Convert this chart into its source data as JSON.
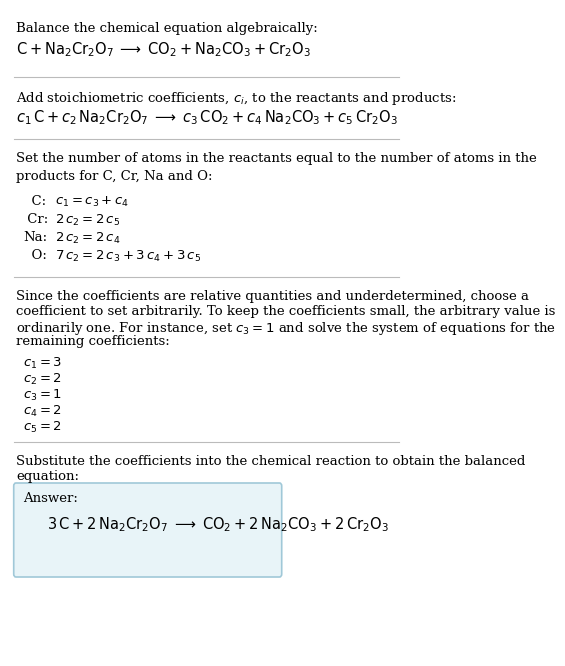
{
  "bg_color": "#ffffff",
  "line_color": "#cccccc",
  "answer_box_color": "#e8f4f8",
  "answer_box_border": "#a0c8d8",
  "text_color": "#000000",
  "section1_title": "Balance the chemical equation algebraically:",
  "section1_eq": "$\\mathrm{C + Na_2Cr_2O_7 \\;\\longrightarrow\\; CO_2 + Na_2CO_3 + Cr_2O_3}$",
  "section2_title": "Add stoichiometric coefficients, $c_i$, to the reactants and products:",
  "section2_eq": "$c_1\\,\\mathrm{C} + c_2\\,\\mathrm{Na_2Cr_2O_7} \\;\\longrightarrow\\; c_3\\,\\mathrm{CO_2} + c_4\\,\\mathrm{Na_2CO_3} + c_5\\,\\mathrm{Cr_2O_3}$",
  "section3_title": "Set the number of atoms in the reactants equal to the number of atoms in the\nproducts for C, Cr, Na and O:",
  "section3_equations": [
    [
      "  C:",
      "$c_1 = c_3 + c_4$"
    ],
    [
      " Cr:",
      "$2\\,c_2 = 2\\,c_5$"
    ],
    [
      "Na:",
      "$2\\,c_2 = 2\\,c_4$"
    ],
    [
      "  O:",
      "$7\\,c_2 = 2\\,c_3 + 3\\,c_4 + 3\\,c_5$"
    ]
  ],
  "section4_title": "Since the coefficients are relative quantities and underdetermined, choose a\ncoefficient to set arbitrarily. To keep the coefficients small, the arbitrary value is\northinarily one. For instance, set $c_3 = 1$ and solve the system of equations for the\nremaining coefficients:",
  "section4_values": [
    "$c_1 = 3$",
    "$c_2 = 2$",
    "$c_3 = 1$",
    "$c_4 = 2$",
    "$c_5 = 2$"
  ],
  "section5_title": "Substitute the coefficients into the chemical reaction to obtain the balanced\nequation:",
  "answer_label": "Answer:",
  "answer_eq": "$3\\,\\mathrm{C} + 2\\,\\mathrm{Na_2Cr_2O_7} \\;\\longrightarrow\\; \\mathrm{CO_2} + 2\\,\\mathrm{Na_2CO_3} + 2\\,\\mathrm{Cr_2O_3}$"
}
